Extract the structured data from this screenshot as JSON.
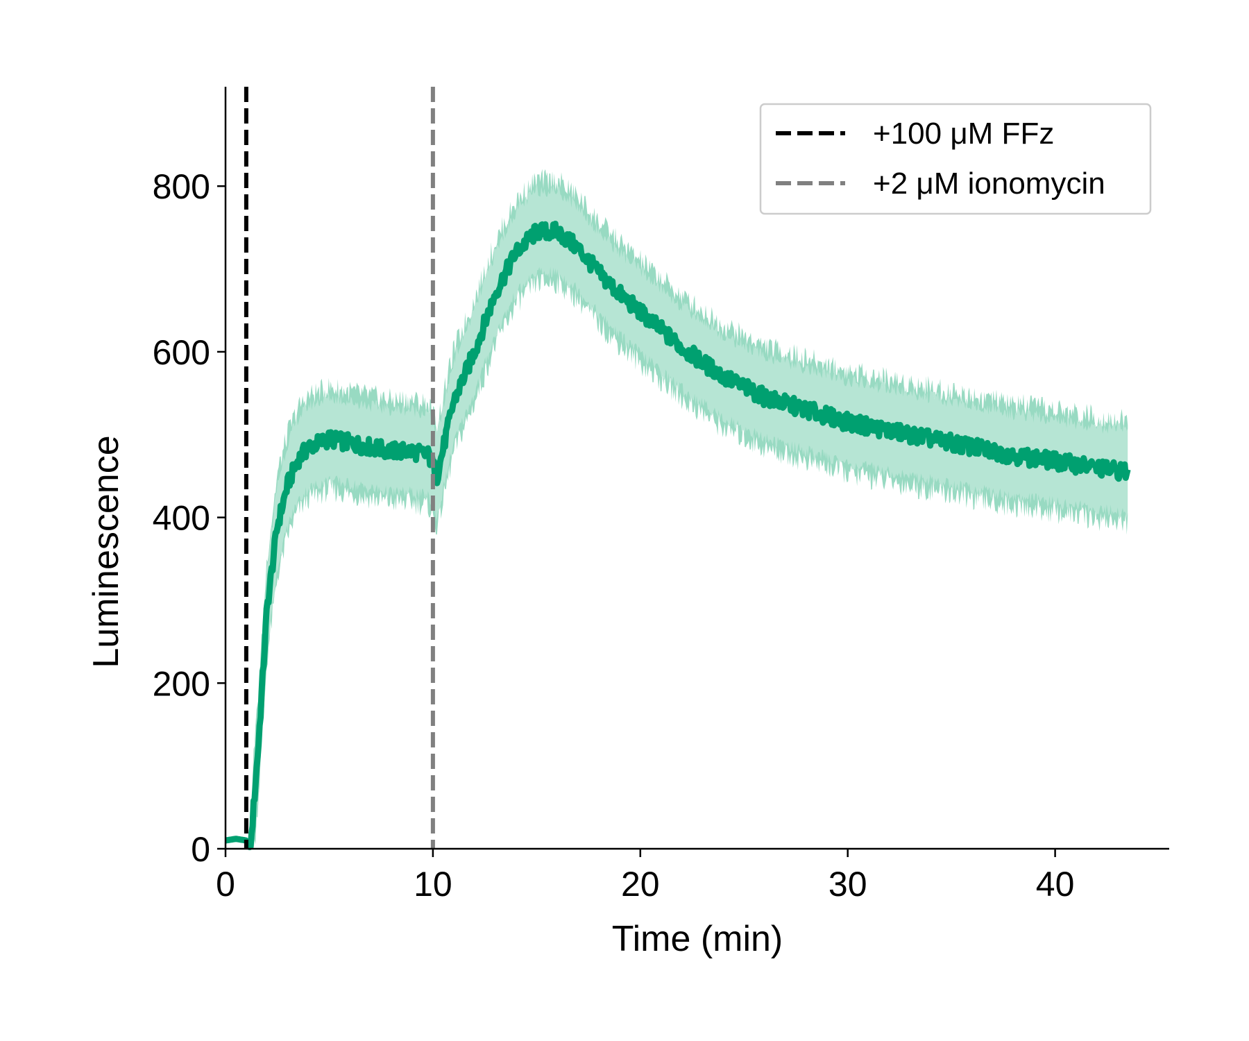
{
  "chart_data": {
    "type": "line",
    "xlabel": "Time (min)",
    "ylabel": "Luminescence",
    "xlim": [
      0,
      45.5
    ],
    "ylim": [
      0,
      920
    ],
    "x_ticks": [
      0,
      10,
      20,
      30,
      40
    ],
    "y_ticks": [
      0,
      200,
      400,
      600,
      800
    ],
    "grid": false,
    "legend_position": "top-right",
    "colors": {
      "mean_line": "#00a070",
      "band_inner": "#7fd1b3",
      "band_outer": "#b6e5d4",
      "ffz_line": "#000000",
      "ionomycin_line": "#808080"
    },
    "series": [
      {
        "x": [
          0,
          0.5,
          1.0,
          1.2,
          1.6,
          2.0,
          2.5,
          3.0,
          3.5,
          4.0,
          5.0,
          6.0,
          7.0,
          8.0,
          9.0,
          9.8,
          10.2,
          11.0,
          12.0,
          13.0,
          14.0,
          15.0,
          16.0,
          17.0,
          18.0,
          19.0,
          20.0,
          22.0,
          24.0,
          26.0,
          28.0,
          30.0,
          32.0,
          34.0,
          36.0,
          38.0,
          40.0,
          42.0,
          43.5
        ],
        "mean": [
          10,
          12,
          10,
          0,
          130,
          290,
          390,
          440,
          470,
          485,
          495,
          490,
          485,
          480,
          480,
          475,
          450,
          540,
          600,
          670,
          720,
          745,
          745,
          725,
          695,
          670,
          648,
          605,
          570,
          545,
          530,
          515,
          505,
          495,
          485,
          475,
          468,
          460,
          455
        ],
        "sd_inner": 50,
        "sd_outer": 62
      }
    ],
    "annotations": [
      {
        "type": "vline",
        "x": 1.0,
        "label": "+100 μM FFz"
      },
      {
        "type": "vline",
        "x": 10.0,
        "label": "+2 μM ionomycin"
      }
    ]
  }
}
